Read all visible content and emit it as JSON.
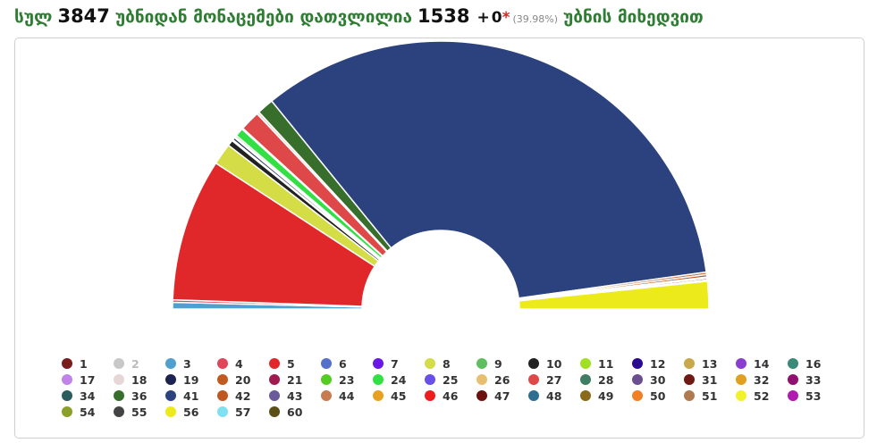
{
  "header": {
    "prefix": "სულ",
    "total": "3847",
    "mid": "უბნიდან მონაცემები დათვლილია",
    "counted": "1538",
    "plus": "+",
    "extra": "0",
    "star": "*",
    "percent": "(39.98%)",
    "suffix": "უბნის მიხედვით"
  },
  "chart_data": {
    "type": "pie",
    "variant": "semicircle-donut",
    "slices": [
      {
        "name": "3",
        "value": 0.8,
        "color": "#4f9fcf"
      },
      {
        "name": "4",
        "value": 0.3,
        "color": "#e0455a"
      },
      {
        "name": "5",
        "value": 17.2,
        "color": "#e0282a"
      },
      {
        "name": "8",
        "value": 2.6,
        "color": "#d4dc46"
      },
      {
        "name": "10",
        "value": 0.7,
        "color": "#222222"
      },
      {
        "name": "17",
        "value": 0.15,
        "color": "#c084e8"
      },
      {
        "name": "19",
        "value": 0.3,
        "color": "#1c2350"
      },
      {
        "name": "21",
        "value": 0.15,
        "color": "#9e1c50"
      },
      {
        "name": "23",
        "value": 0.2,
        "color": "#55cc22"
      },
      {
        "name": "24",
        "value": 1.0,
        "color": "#33e044"
      },
      {
        "name": "25",
        "value": 0.15,
        "color": "#6650e8"
      },
      {
        "name": "27",
        "value": 2.4,
        "color": "#de4848"
      },
      {
        "name": "18",
        "value": 0.3,
        "color": "#e6d6d6"
      },
      {
        "name": "36",
        "value": 2.0,
        "color": "#386e2c"
      },
      {
        "name": "41",
        "value": 67.2,
        "color": "#2b427f"
      },
      {
        "name": "44",
        "value": 0.3,
        "color": "#c87a50"
      },
      {
        "name": "42",
        "value": 0.3,
        "color": "#c0571e"
      },
      {
        "name": "50",
        "value": 0.15,
        "color": "#f08022"
      },
      {
        "name": "31",
        "value": 0.2,
        "color": "#6e1a14"
      },
      {
        "name": "55",
        "value": 0.15,
        "color": "#444444"
      },
      {
        "name": "56",
        "value": 3.3,
        "color": "#ecea1a"
      }
    ]
  },
  "legend": [
    {
      "label": "1",
      "color": "#7b1c1c",
      "muted": false
    },
    {
      "label": "2",
      "color": "#c8c8c8",
      "muted": true
    },
    {
      "label": "3",
      "color": "#4f9fcf",
      "muted": false
    },
    {
      "label": "4",
      "color": "#e0455a",
      "muted": false
    },
    {
      "label": "5",
      "color": "#e0282a",
      "muted": false
    },
    {
      "label": "6",
      "color": "#5570cc",
      "muted": false
    },
    {
      "label": "7",
      "color": "#6a16e6",
      "muted": false
    },
    {
      "label": "8",
      "color": "#d4dc46",
      "muted": false
    },
    {
      "label": "9",
      "color": "#5fbf5f",
      "muted": false
    },
    {
      "label": "10",
      "color": "#222222",
      "muted": false
    },
    {
      "label": "11",
      "color": "#a0e020",
      "muted": false
    },
    {
      "label": "12",
      "color": "#2a0a90",
      "muted": false
    },
    {
      "label": "13",
      "color": "#c8a848",
      "muted": false
    },
    {
      "label": "14",
      "color": "#8a3ed0",
      "muted": false
    },
    {
      "label": "16",
      "color": "#3a8a7a",
      "muted": false
    },
    {
      "label": "17",
      "color": "#c084e8",
      "muted": false
    },
    {
      "label": "18",
      "color": "#e6d6d6",
      "muted": false
    },
    {
      "label": "19",
      "color": "#1c2350",
      "muted": false
    },
    {
      "label": "20",
      "color": "#c05a20",
      "muted": false
    },
    {
      "label": "21",
      "color": "#9e1c50",
      "muted": false
    },
    {
      "label": "23",
      "color": "#55cc22",
      "muted": false
    },
    {
      "label": "24",
      "color": "#33e044",
      "muted": false
    },
    {
      "label": "25",
      "color": "#6650e8",
      "muted": false
    },
    {
      "label": "26",
      "color": "#e6c070",
      "muted": false
    },
    {
      "label": "27",
      "color": "#de4848",
      "muted": false
    },
    {
      "label": "28",
      "color": "#3e7e64",
      "muted": false
    },
    {
      "label": "30",
      "color": "#6a4e90",
      "muted": false
    },
    {
      "label": "31",
      "color": "#6e1a14",
      "muted": false
    },
    {
      "label": "32",
      "color": "#e0a020",
      "muted": false
    },
    {
      "label": "33",
      "color": "#901070",
      "muted": false
    },
    {
      "label": "34",
      "color": "#2a5e5e",
      "muted": false
    },
    {
      "label": "36",
      "color": "#386e2c",
      "muted": false
    },
    {
      "label": "41",
      "color": "#2b427f",
      "muted": false
    },
    {
      "label": "42",
      "color": "#c0571e",
      "muted": false
    },
    {
      "label": "43",
      "color": "#6a5a9a",
      "muted": false
    },
    {
      "label": "44",
      "color": "#c87a50",
      "muted": false
    },
    {
      "label": "45",
      "color": "#e8a020",
      "muted": false
    },
    {
      "label": "46",
      "color": "#ee1c1c",
      "muted": false
    },
    {
      "label": "47",
      "color": "#6e1010",
      "muted": false
    },
    {
      "label": "48",
      "color": "#2e6e90",
      "muted": false
    },
    {
      "label": "49",
      "color": "#8a6a1a",
      "muted": false
    },
    {
      "label": "50",
      "color": "#f08022",
      "muted": false
    },
    {
      "label": "51",
      "color": "#b07a50",
      "muted": false
    },
    {
      "label": "52",
      "color": "#f2f22a",
      "muted": false
    },
    {
      "label": "53",
      "color": "#b01ab0",
      "muted": false
    },
    {
      "label": "54",
      "color": "#8aa02a",
      "muted": false
    },
    {
      "label": "55",
      "color": "#444444",
      "muted": false
    },
    {
      "label": "56",
      "color": "#ecea1a",
      "muted": false
    },
    {
      "label": "57",
      "color": "#7ee0f0",
      "muted": false
    },
    {
      "label": "60",
      "color": "#5a5018",
      "muted": false
    }
  ]
}
